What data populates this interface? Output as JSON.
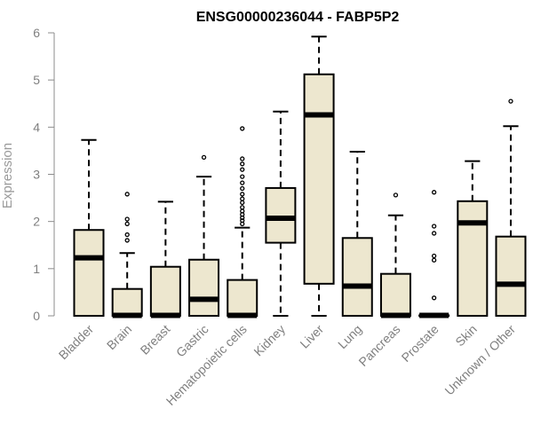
{
  "chart_data": {
    "type": "box",
    "title": "ENSG00000236044 - FABP5P2",
    "xlabel": "",
    "ylabel": "Expression",
    "ylim": [
      0,
      6
    ],
    "yticks": [
      "0",
      "1",
      "2",
      "3",
      "4",
      "5",
      "6"
    ],
    "grid": false,
    "legend": "none",
    "colors": {
      "box_fill": "#ede7cf",
      "stroke": "#000000",
      "axis": "#8c8c8c",
      "tick_label": "#7f7f7f"
    },
    "categories": [
      "Bladder",
      "Brain",
      "Breast",
      "Gastric",
      "Hematopoietic cells",
      "Kidney",
      "Liver",
      "Lung",
      "Pancreas",
      "Prostate",
      "Skin",
      "Unknown / Other"
    ],
    "boxes": [
      {
        "whisker_low": 0,
        "q1": 0,
        "median": 1.23,
        "q3": 1.82,
        "whisker_high": 3.73,
        "outliers": []
      },
      {
        "whisker_low": 0,
        "q1": 0,
        "median": 0.01,
        "q3": 0.57,
        "whisker_high": 1.33,
        "outliers": [
          1.6,
          1.72,
          1.95,
          2.05,
          2.58
        ]
      },
      {
        "whisker_low": 0,
        "q1": 0,
        "median": 0.01,
        "q3": 1.04,
        "whisker_high": 2.42,
        "outliers": []
      },
      {
        "whisker_low": 0,
        "q1": 0,
        "median": 0.35,
        "q3": 1.19,
        "whisker_high": 2.95,
        "outliers": [
          3.36
        ]
      },
      {
        "whisker_low": 0,
        "q1": 0,
        "median": 0.01,
        "q3": 0.76,
        "whisker_high": 1.87,
        "outliers": [
          1.95,
          2.02,
          2.08,
          2.15,
          2.22,
          2.3,
          2.4,
          2.48,
          2.58,
          2.7,
          2.82,
          2.95,
          3.1,
          3.22,
          3.33,
          3.97
        ]
      },
      {
        "whisker_low": 0,
        "q1": 1.55,
        "median": 2.07,
        "q3": 2.71,
        "whisker_high": 4.33,
        "outliers": []
      },
      {
        "whisker_low": 0,
        "q1": 0.68,
        "median": 4.26,
        "q3": 5.12,
        "whisker_high": 5.92,
        "outliers": []
      },
      {
        "whisker_low": 0,
        "q1": 0,
        "median": 0.63,
        "q3": 1.65,
        "whisker_high": 3.48,
        "outliers": []
      },
      {
        "whisker_low": 0,
        "q1": 0,
        "median": 0.01,
        "q3": 0.89,
        "whisker_high": 2.13,
        "outliers": [
          2.56
        ]
      },
      {
        "whisker_low": 0,
        "q1": 0,
        "median": 0.01,
        "q3": 0.01,
        "whisker_high": 0.01,
        "outliers": [
          0.38,
          1.18,
          1.27,
          1.75,
          1.9,
          2.62
        ]
      },
      {
        "whisker_low": 0,
        "q1": 0,
        "median": 1.97,
        "q3": 2.43,
        "whisker_high": 3.28,
        "outliers": []
      },
      {
        "whisker_low": 0,
        "q1": 0,
        "median": 0.67,
        "q3": 1.68,
        "whisker_high": 4.02,
        "outliers": [
          4.55
        ]
      }
    ]
  }
}
